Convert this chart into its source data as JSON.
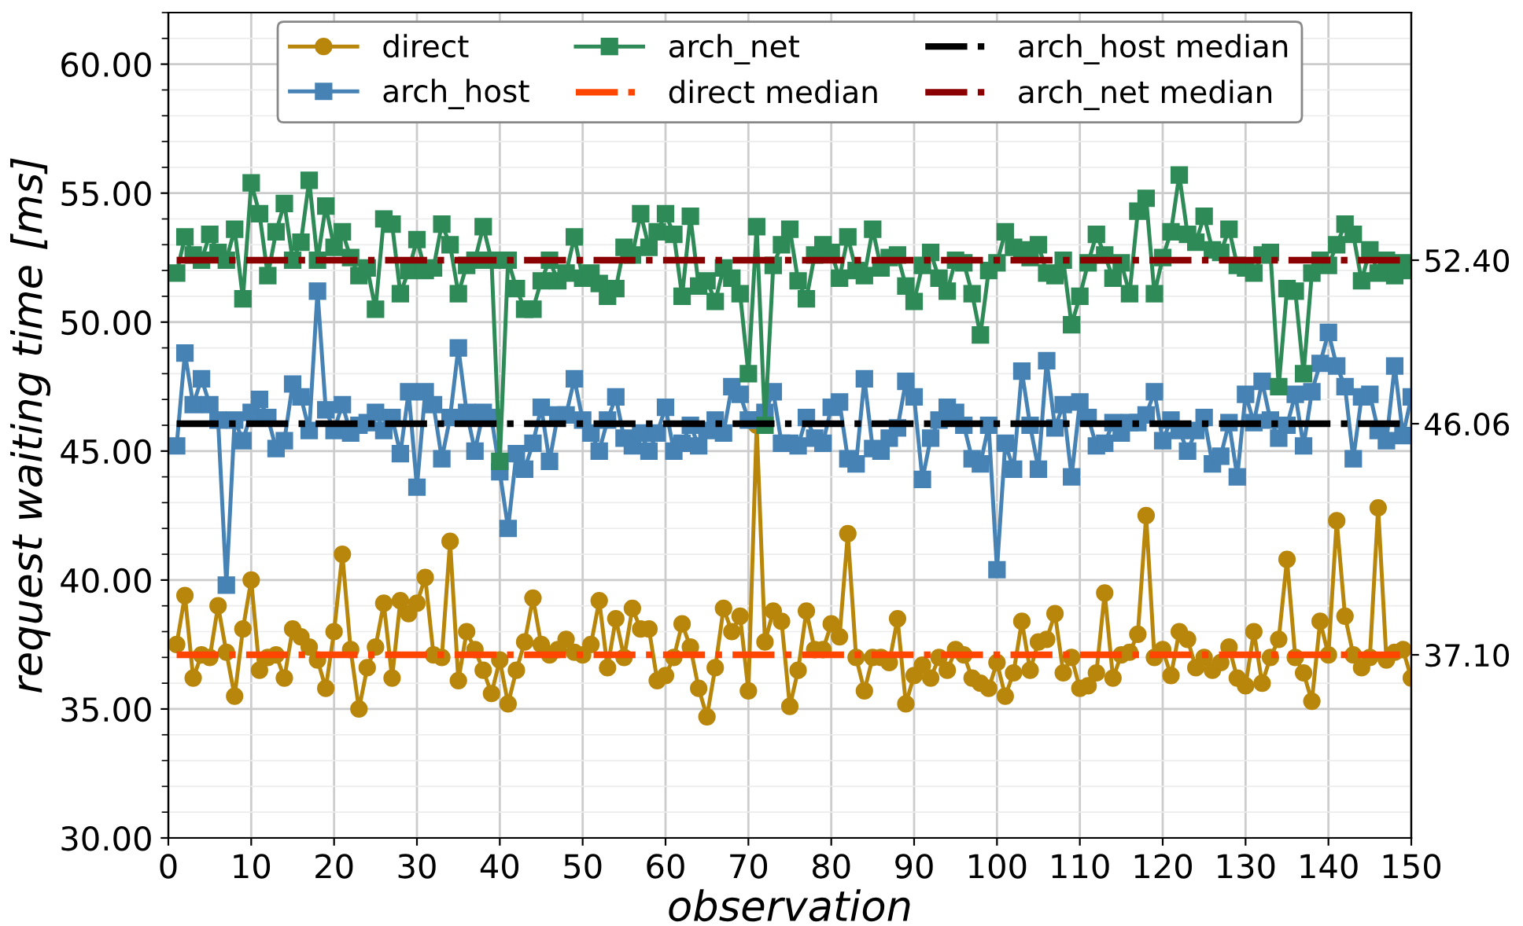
{
  "chart_data": {
    "type": "line",
    "xlabel": "observation",
    "ylabel": "request waiting time [ms]",
    "x": [
      1,
      2,
      3,
      4,
      5,
      6,
      7,
      8,
      9,
      10,
      11,
      12,
      13,
      14,
      15,
      16,
      17,
      18,
      19,
      20,
      21,
      22,
      23,
      24,
      25,
      26,
      27,
      28,
      29,
      30,
      31,
      32,
      33,
      34,
      35,
      36,
      37,
      38,
      39,
      40,
      41,
      42,
      43,
      44,
      45,
      46,
      47,
      48,
      49,
      50,
      51,
      52,
      53,
      54,
      55,
      56,
      57,
      58,
      59,
      60,
      61,
      62,
      63,
      64,
      65,
      66,
      67,
      68,
      69,
      70,
      71,
      72,
      73,
      74,
      75,
      76,
      77,
      78,
      79,
      80,
      81,
      82,
      83,
      84,
      85,
      86,
      87,
      88,
      89,
      90,
      91,
      92,
      93,
      94,
      95,
      96,
      97,
      98,
      99,
      100,
      101,
      102,
      103,
      104,
      105,
      106,
      107,
      108,
      109,
      110,
      111,
      112,
      113,
      114,
      115,
      116,
      117,
      118,
      119,
      120,
      121,
      122,
      123,
      124,
      125,
      126,
      127,
      128,
      129,
      130,
      131,
      132,
      133,
      134,
      135,
      136,
      137,
      138,
      139,
      140,
      141,
      142,
      143,
      144,
      145,
      146,
      147,
      148,
      149,
      150
    ],
    "series": [
      {
        "name": "direct",
        "color": "#b8860b",
        "marker": "circle",
        "values": [
          37.5,
          39.4,
          36.2,
          37.1,
          37.0,
          39.0,
          37.2,
          35.5,
          38.1,
          40.0,
          36.5,
          37.0,
          37.1,
          36.2,
          38.1,
          37.8,
          37.4,
          36.9,
          35.8,
          38.0,
          41.0,
          37.3,
          35.0,
          36.6,
          37.4,
          39.1,
          36.2,
          39.2,
          38.7,
          39.1,
          40.1,
          37.1,
          37.0,
          41.5,
          36.1,
          38.0,
          37.3,
          36.5,
          35.6,
          36.9,
          35.2,
          36.5,
          37.6,
          39.3,
          37.5,
          37.1,
          37.3,
          37.7,
          37.2,
          37.1,
          37.5,
          39.2,
          36.6,
          38.5,
          37.0,
          38.9,
          38.1,
          38.1,
          36.1,
          36.3,
          37.0,
          38.3,
          37.4,
          35.8,
          34.7,
          36.6,
          38.9,
          38.0,
          38.6,
          35.7,
          46.0,
          37.6,
          38.8,
          38.4,
          35.1,
          36.5,
          38.8,
          37.3,
          37.3,
          38.3,
          37.8,
          41.8,
          37.0,
          35.7,
          37.0,
          37.0,
          36.8,
          38.5,
          35.2,
          36.3,
          36.7,
          36.2,
          37.0,
          36.5,
          37.3,
          37.1,
          36.2,
          36.0,
          35.8,
          36.8,
          35.5,
          36.4,
          38.4,
          36.5,
          37.6,
          37.7,
          38.7,
          36.4,
          37.0,
          35.8,
          35.9,
          36.4,
          39.5,
          36.2,
          37.1,
          37.2,
          37.9,
          42.5,
          37.0,
          37.3,
          36.3,
          38.0,
          37.7,
          36.6,
          37.0,
          36.5,
          36.8,
          37.4,
          36.2,
          35.9,
          38.0,
          36.0,
          37.0,
          37.7,
          40.8,
          37.0,
          36.4,
          35.3,
          38.4,
          37.1,
          42.3,
          38.6,
          37.1,
          36.6,
          37.0,
          42.8,
          36.9,
          37.2,
          37.3,
          36.2
        ]
      },
      {
        "name": "arch_host",
        "color": "#4682b4",
        "marker": "square",
        "values": [
          45.2,
          48.8,
          46.8,
          47.8,
          46.8,
          46.2,
          39.8,
          46.2,
          45.4,
          46.5,
          47.0,
          46.3,
          45.1,
          45.4,
          47.6,
          47.1,
          45.8,
          51.2,
          46.6,
          45.8,
          46.8,
          45.7,
          46.0,
          46.1,
          46.5,
          45.8,
          46.3,
          44.9,
          47.3,
          43.6,
          47.3,
          46.8,
          44.7,
          46.3,
          49.0,
          46.5,
          45.0,
          46.5,
          46.3,
          44.2,
          42.0,
          44.9,
          44.3,
          45.3,
          46.7,
          44.6,
          46.4,
          46.4,
          47.8,
          46.2,
          45.7,
          45.0,
          46.2,
          47.1,
          45.5,
          45.2,
          45.7,
          45.0,
          45.7,
          46.7,
          45.0,
          45.3,
          46.0,
          45.2,
          45.8,
          46.2,
          45.7,
          47.5,
          47.2,
          46.2,
          46.2,
          46.5,
          47.3,
          45.3,
          45.3,
          45.2,
          46.3,
          45.5,
          45.3,
          46.7,
          46.9,
          44.7,
          44.5,
          47.8,
          45.1,
          45.0,
          45.5,
          45.9,
          47.7,
          47.1,
          43.9,
          45.5,
          46.2,
          46.7,
          46.5,
          46.0,
          44.7,
          44.5,
          46.0,
          40.4,
          45.3,
          44.3,
          48.1,
          46.0,
          44.3,
          48.5,
          45.9,
          46.8,
          44.0,
          46.9,
          46.3,
          45.2,
          45.3,
          46.1,
          45.7,
          46.1,
          46.1,
          46.4,
          47.3,
          45.4,
          46.2,
          45.8,
          45.0,
          45.8,
          46.3,
          44.5,
          44.8,
          46.1,
          44.0,
          47.2,
          46.1,
          47.7,
          46.2,
          45.5,
          46.0,
          47.2,
          45.2,
          47.3,
          48.4,
          49.6,
          48.3,
          47.5,
          44.7,
          47.1,
          47.2,
          45.8,
          45.4,
          48.3,
          45.6,
          47.1
        ]
      },
      {
        "name": "arch_net",
        "color": "#2e8b57",
        "marker": "square",
        "values": [
          51.9,
          53.3,
          52.6,
          52.4,
          53.4,
          52.7,
          52.4,
          53.6,
          50.9,
          55.4,
          54.2,
          51.8,
          53.5,
          54.6,
          52.4,
          53.1,
          55.5,
          52.4,
          54.5,
          52.9,
          53.5,
          52.5,
          51.8,
          52.1,
          50.5,
          54.0,
          53.8,
          51.1,
          52.0,
          53.2,
          52.0,
          52.1,
          53.8,
          53.0,
          51.1,
          52.2,
          52.4,
          53.7,
          52.4,
          44.6,
          52.4,
          51.3,
          50.5,
          50.5,
          51.6,
          52.4,
          51.6,
          51.9,
          53.3,
          51.7,
          51.9,
          51.5,
          51.0,
          51.3,
          52.9,
          52.6,
          54.2,
          52.9,
          53.5,
          54.2,
          53.4,
          51.0,
          54.1,
          51.4,
          51.6,
          50.8,
          52.1,
          51.7,
          51.1,
          48.0,
          53.7,
          46.0,
          52.2,
          53.0,
          53.6,
          51.6,
          50.9,
          52.6,
          53.0,
          52.7,
          51.7,
          53.3,
          52.0,
          51.8,
          53.6,
          52.1,
          52.5,
          52.6,
          51.4,
          50.8,
          52.2,
          52.7,
          51.7,
          51.2,
          52.4,
          52.3,
          51.1,
          49.5,
          52.0,
          52.3,
          53.5,
          52.9,
          52.8,
          52.5,
          53.0,
          51.9,
          51.8,
          52.4,
          49.9,
          51.0,
          52.3,
          53.4,
          52.6,
          51.7,
          52.3,
          51.1,
          54.3,
          54.8,
          51.1,
          52.5,
          53.5,
          55.7,
          53.4,
          53.1,
          54.1,
          52.8,
          52.7,
          53.6,
          52.2,
          52.1,
          51.9,
          52.6,
          52.7,
          47.5,
          51.3,
          51.2,
          48.0,
          51.9,
          52.4,
          52.2,
          53.0,
          53.8,
          53.4,
          51.6,
          52.8,
          51.9,
          52.4,
          51.8,
          52.3,
          52.0
        ]
      }
    ],
    "ref_lines": [
      {
        "axis": "y",
        "value": 37.1,
        "label": "direct median",
        "color": "#ff4500",
        "line_style": "dashdot"
      },
      {
        "axis": "y",
        "value": 46.06,
        "label": "arch_host median",
        "color": "#000000",
        "line_style": "dashdot"
      },
      {
        "axis": "y",
        "value": 52.4,
        "label": "arch_net median",
        "color": "#8b0000",
        "line_style": "dashdot"
      }
    ],
    "xlim": [
      0,
      150
    ],
    "xticks": [
      0,
      10,
      20,
      30,
      40,
      50,
      60,
      70,
      80,
      90,
      100,
      110,
      120,
      130,
      140,
      150
    ],
    "ylim": [
      30,
      62
    ],
    "yticks": [
      {
        "value": 30,
        "label": "30.00"
      },
      {
        "value": 35,
        "label": "35.00"
      },
      {
        "value": 40,
        "label": "40.00"
      },
      {
        "value": 45,
        "label": "45.00"
      },
      {
        "value": 50,
        "label": "50.00"
      },
      {
        "value": 55,
        "label": "55.00"
      },
      {
        "value": 60,
        "label": "60.00"
      }
    ],
    "y2lim": [
      30,
      62
    ],
    "y2ticks": [
      {
        "value": 37.1,
        "label": "37.10"
      },
      {
        "value": 46.06,
        "label": "46.06"
      },
      {
        "value": 52.4,
        "label": "52.40"
      }
    ],
    "grid": true,
    "legend": "top",
    "line_style": "solid"
  }
}
